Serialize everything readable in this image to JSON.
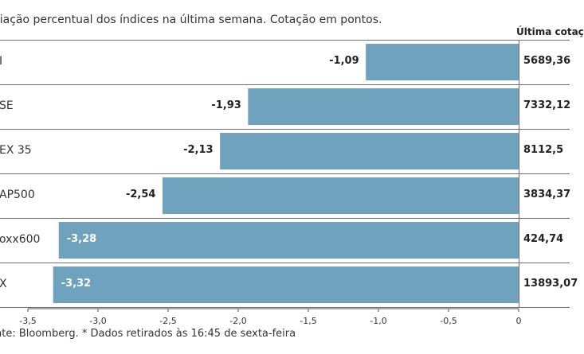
{
  "subtitle": "riação percentual dos índices na última semana. Cotação em pontos.",
  "column_header": "Última cotaç",
  "footer": "nte: Bloomberg.  * Dados retirados às 16:45 de sexta-feira",
  "colors": {
    "bar": "#6fa2bd",
    "axis": "#555555",
    "divider": "#6f6f6f"
  },
  "chart_data": {
    "type": "bar",
    "orientation": "horizontal",
    "categories": [
      "I",
      "SE",
      "EX 35",
      "AP500",
      "oxx600",
      "X"
    ],
    "values": [
      -1.09,
      -1.93,
      -2.13,
      -2.54,
      -3.28,
      -3.32
    ],
    "value_labels": [
      "-1,09",
      "-1,93",
      "-2,13",
      "-2,54",
      "-3,28",
      "-3,32"
    ],
    "last_quotes": [
      "5689,36",
      "7332,12",
      "8112,5",
      "3834,37",
      "424,74",
      "13893,07"
    ],
    "xlim": [
      -3.5,
      0
    ],
    "xticks": [
      -3.5,
      -3.0,
      -2.5,
      -2.0,
      -1.5,
      -1.0,
      -0.5,
      0
    ],
    "xtick_labels": [
      "-3,5",
      "-3,0",
      "-2,5",
      "-2,0",
      "-1,5",
      "-1,0",
      "-0,5",
      "0"
    ],
    "grid": false
  }
}
